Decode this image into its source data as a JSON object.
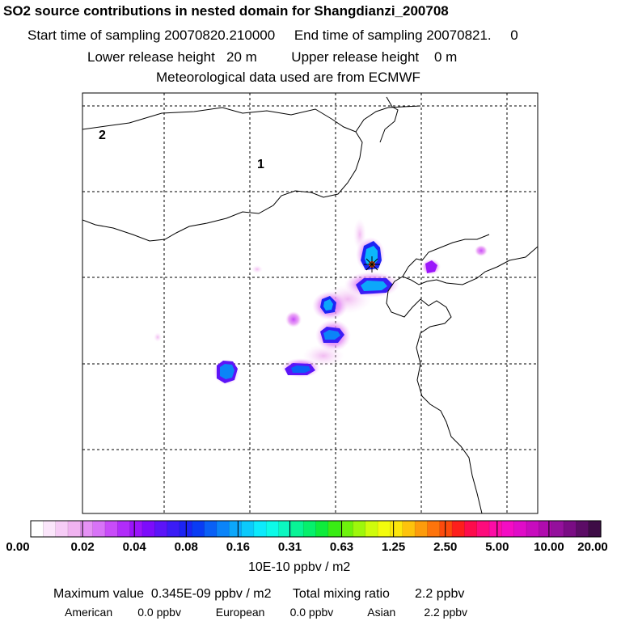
{
  "header": {
    "title": "SO2 source contributions in nested domain for Shangdianzi_200708",
    "line1": "Start time of sampling 20070820.210000     End time of sampling 20070821.     0",
    "line2": "Lower release height   20 m         Upper release height    0 m",
    "line3": "Meteorological data used are from ECMWF"
  },
  "map": {
    "domain_labels": [
      "2",
      "1"
    ],
    "colors": {
      "frame": "#000000",
      "grid": "#000000",
      "coast": "#000000",
      "marker": "#000000"
    }
  },
  "colorbar": {
    "ticks": [
      "0.00",
      "0.02",
      "0.04",
      "0.08",
      "0.16",
      "0.31",
      "0.63",
      "1.25",
      "2.50",
      "5.00",
      "10.00",
      "20.00"
    ],
    "colors": [
      "#ffffff",
      "#fbe6fb",
      "#f6ccf6",
      "#f0b3f0",
      "#e591f5",
      "#d873f7",
      "#c84cf8",
      "#b12cf9",
      "#9b14fb",
      "#7d0cfb",
      "#5c14f8",
      "#3b1cf5",
      "#1c24f4",
      "#0a3cf4",
      "#0a60f6",
      "#0b84f8",
      "#0ca7fa",
      "#0ccafb",
      "#0deafc",
      "#0dfae8",
      "#0bf7c0",
      "#08f496",
      "#06f06c",
      "#0eec3c",
      "#39ec14",
      "#6ef20c",
      "#9ef70c",
      "#cffc0c",
      "#f3fc0c",
      "#fde60c",
      "#fdc30c",
      "#fd9c0c",
      "#fd740c",
      "#fd4b0c",
      "#fd1f1c",
      "#fd0c4c",
      "#fd0c7c",
      "#fd0ca6",
      "#f40cc4",
      "#e00cc8",
      "#c80cbe",
      "#b00cae",
      "#94109c",
      "#7a0c84",
      "#5c0c66",
      "#3e0c46"
    ],
    "unit": "10E-10 ppbv / m2"
  },
  "footer": {
    "max_line": "Maximum value  0.345E-09 ppbv / m2      Total mixing ratio       2.2 ppbv",
    "sources_line": "American        0.0 ppbv           European        0.0 ppbv           Asian         2.2 ppbv"
  }
}
